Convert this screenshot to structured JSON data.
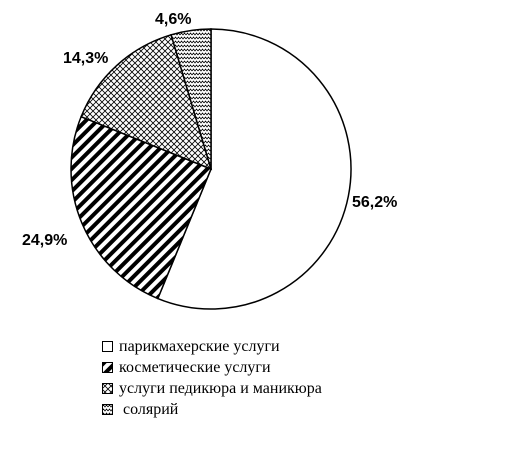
{
  "chart_data": {
    "type": "pie",
    "slices": [
      {
        "label": "парикмахерские услуги",
        "value": 56.2,
        "value_label": "56,2%",
        "pattern": "none"
      },
      {
        "label": "косметические услуги",
        "value": 24.9,
        "value_label": "24,9%",
        "pattern": "diagonal-lines"
      },
      {
        "label": "услуги педикюра и маникюра",
        "value": 14.3,
        "value_label": "14,3%",
        "pattern": "crosshatch"
      },
      {
        "label": "солярий",
        "value": 4.6,
        "value_label": "4,6%",
        "pattern": "zigzag"
      }
    ],
    "start_angle_deg": 0,
    "direction": "clockwise",
    "legend_placement": "bottom",
    "colors": {
      "fill": "#ffffff",
      "stroke": "#000000"
    }
  }
}
